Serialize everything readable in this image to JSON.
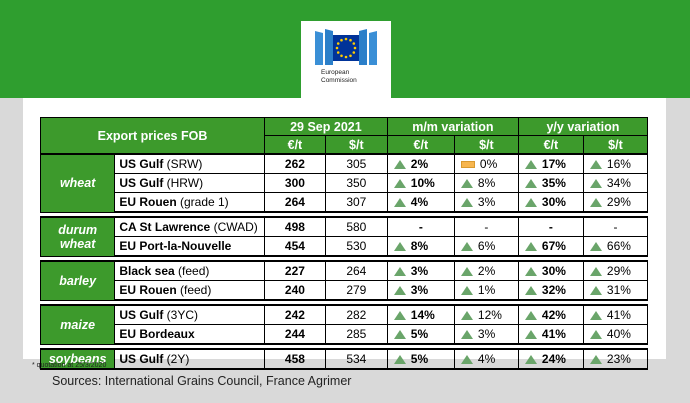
{
  "header": {
    "logo_text_line1": "European",
    "logo_text_line2": "Commission"
  },
  "table": {
    "title": "Export prices FOB",
    "date": "29 Sep 2021",
    "mm_label": "m/m variation",
    "yy_label": "y/y variation",
    "eur_label": "€/t",
    "usd_label": "$/t",
    "groups": [
      {
        "name": "wheat",
        "rows": [
          {
            "origin": "US Gulf",
            "spec": " (SRW)",
            "eur": "262",
            "usd": "305",
            "mm_eur": "2%",
            "mm_eur_icon": "up",
            "mm_usd": "0%",
            "mm_usd_icon": "flat",
            "yy_eur": "17%",
            "yy_eur_icon": "up",
            "yy_usd": "16%",
            "yy_usd_icon": "up"
          },
          {
            "origin": "US Gulf",
            "spec": " (HRW)",
            "eur": "300",
            "usd": "350",
            "mm_eur": "10%",
            "mm_eur_icon": "up",
            "mm_usd": "8%",
            "mm_usd_icon": "up",
            "yy_eur": "35%",
            "yy_eur_icon": "up",
            "yy_usd": "34%",
            "yy_usd_icon": "up"
          },
          {
            "origin": "EU Rouen",
            "spec": " (grade 1)",
            "eur": "264",
            "usd": "307",
            "mm_eur": "4%",
            "mm_eur_icon": "up",
            "mm_usd": "3%",
            "mm_usd_icon": "up",
            "yy_eur": "30%",
            "yy_eur_icon": "up",
            "yy_usd": "29%",
            "yy_usd_icon": "up"
          }
        ]
      },
      {
        "name_line1": "durum",
        "name_line2": "wheat",
        "rows": [
          {
            "origin": "CA St Lawrence",
            "spec": " (CWAD)",
            "eur": "498",
            "usd": "580",
            "mm_eur": "-",
            "mm_usd": "-",
            "yy_eur": "-",
            "yy_usd": "-"
          },
          {
            "origin": "EU Port-la-Nouvelle",
            "spec": "",
            "eur": "454",
            "usd": "530",
            "mm_eur": "8%",
            "mm_eur_icon": "up",
            "mm_usd": "6%",
            "mm_usd_icon": "up",
            "yy_eur": "67%",
            "yy_eur_icon": "up",
            "yy_usd": "66%",
            "yy_usd_icon": "up"
          }
        ]
      },
      {
        "name": "barley",
        "rows": [
          {
            "origin": "Black sea",
            "spec": " (feed)",
            "eur": "227",
            "usd": "264",
            "mm_eur": "3%",
            "mm_eur_icon": "up",
            "mm_usd": "2%",
            "mm_usd_icon": "up",
            "yy_eur": "30%",
            "yy_eur_icon": "up",
            "yy_usd": "29%",
            "yy_usd_icon": "up"
          },
          {
            "origin": "EU Rouen",
            "spec": " (feed)",
            "eur": "240",
            "usd": "279",
            "mm_eur": "3%",
            "mm_eur_icon": "up",
            "mm_usd": "1%",
            "mm_usd_icon": "up",
            "yy_eur": "32%",
            "yy_eur_icon": "up",
            "yy_usd": "31%",
            "yy_usd_icon": "up"
          }
        ]
      },
      {
        "name": "maize",
        "rows": [
          {
            "origin": "US Gulf",
            "spec": " (3YC)",
            "eur": "242",
            "usd": "282",
            "mm_eur": "14%",
            "mm_eur_icon": "up",
            "mm_usd": "12%",
            "mm_usd_icon": "up",
            "yy_eur": "42%",
            "yy_eur_icon": "up",
            "yy_usd": "41%",
            "yy_usd_icon": "up"
          },
          {
            "origin": "EU Bordeaux",
            "spec": "",
            "eur": "244",
            "usd": "285",
            "mm_eur": "5%",
            "mm_eur_icon": "up",
            "mm_usd": "3%",
            "mm_usd_icon": "up",
            "yy_eur": "41%",
            "yy_eur_icon": "up",
            "yy_usd": "40%",
            "yy_usd_icon": "up"
          }
        ]
      },
      {
        "name": "soybeans",
        "rows": [
          {
            "origin": "US Gulf",
            "spec": " (2Y)",
            "eur": "458",
            "usd": "534",
            "mm_eur": "5%",
            "mm_eur_icon": "up",
            "mm_usd": "4%",
            "mm_usd_icon": "up",
            "yy_eur": "24%",
            "yy_eur_icon": "up",
            "yy_usd": "23%",
            "yy_usd_icon": "up"
          }
        ]
      }
    ]
  },
  "footnote": "* quotation at 25/3/2020",
  "sources": "Sources: International Grains Council, France Agrimer",
  "colors": {
    "banner_green": "#2f9e2f",
    "header_green": "#3d9a2c",
    "up_triangle": "#6aa56a",
    "flat_bar": "#f7b64f",
    "background": "#d9d9d9"
  }
}
